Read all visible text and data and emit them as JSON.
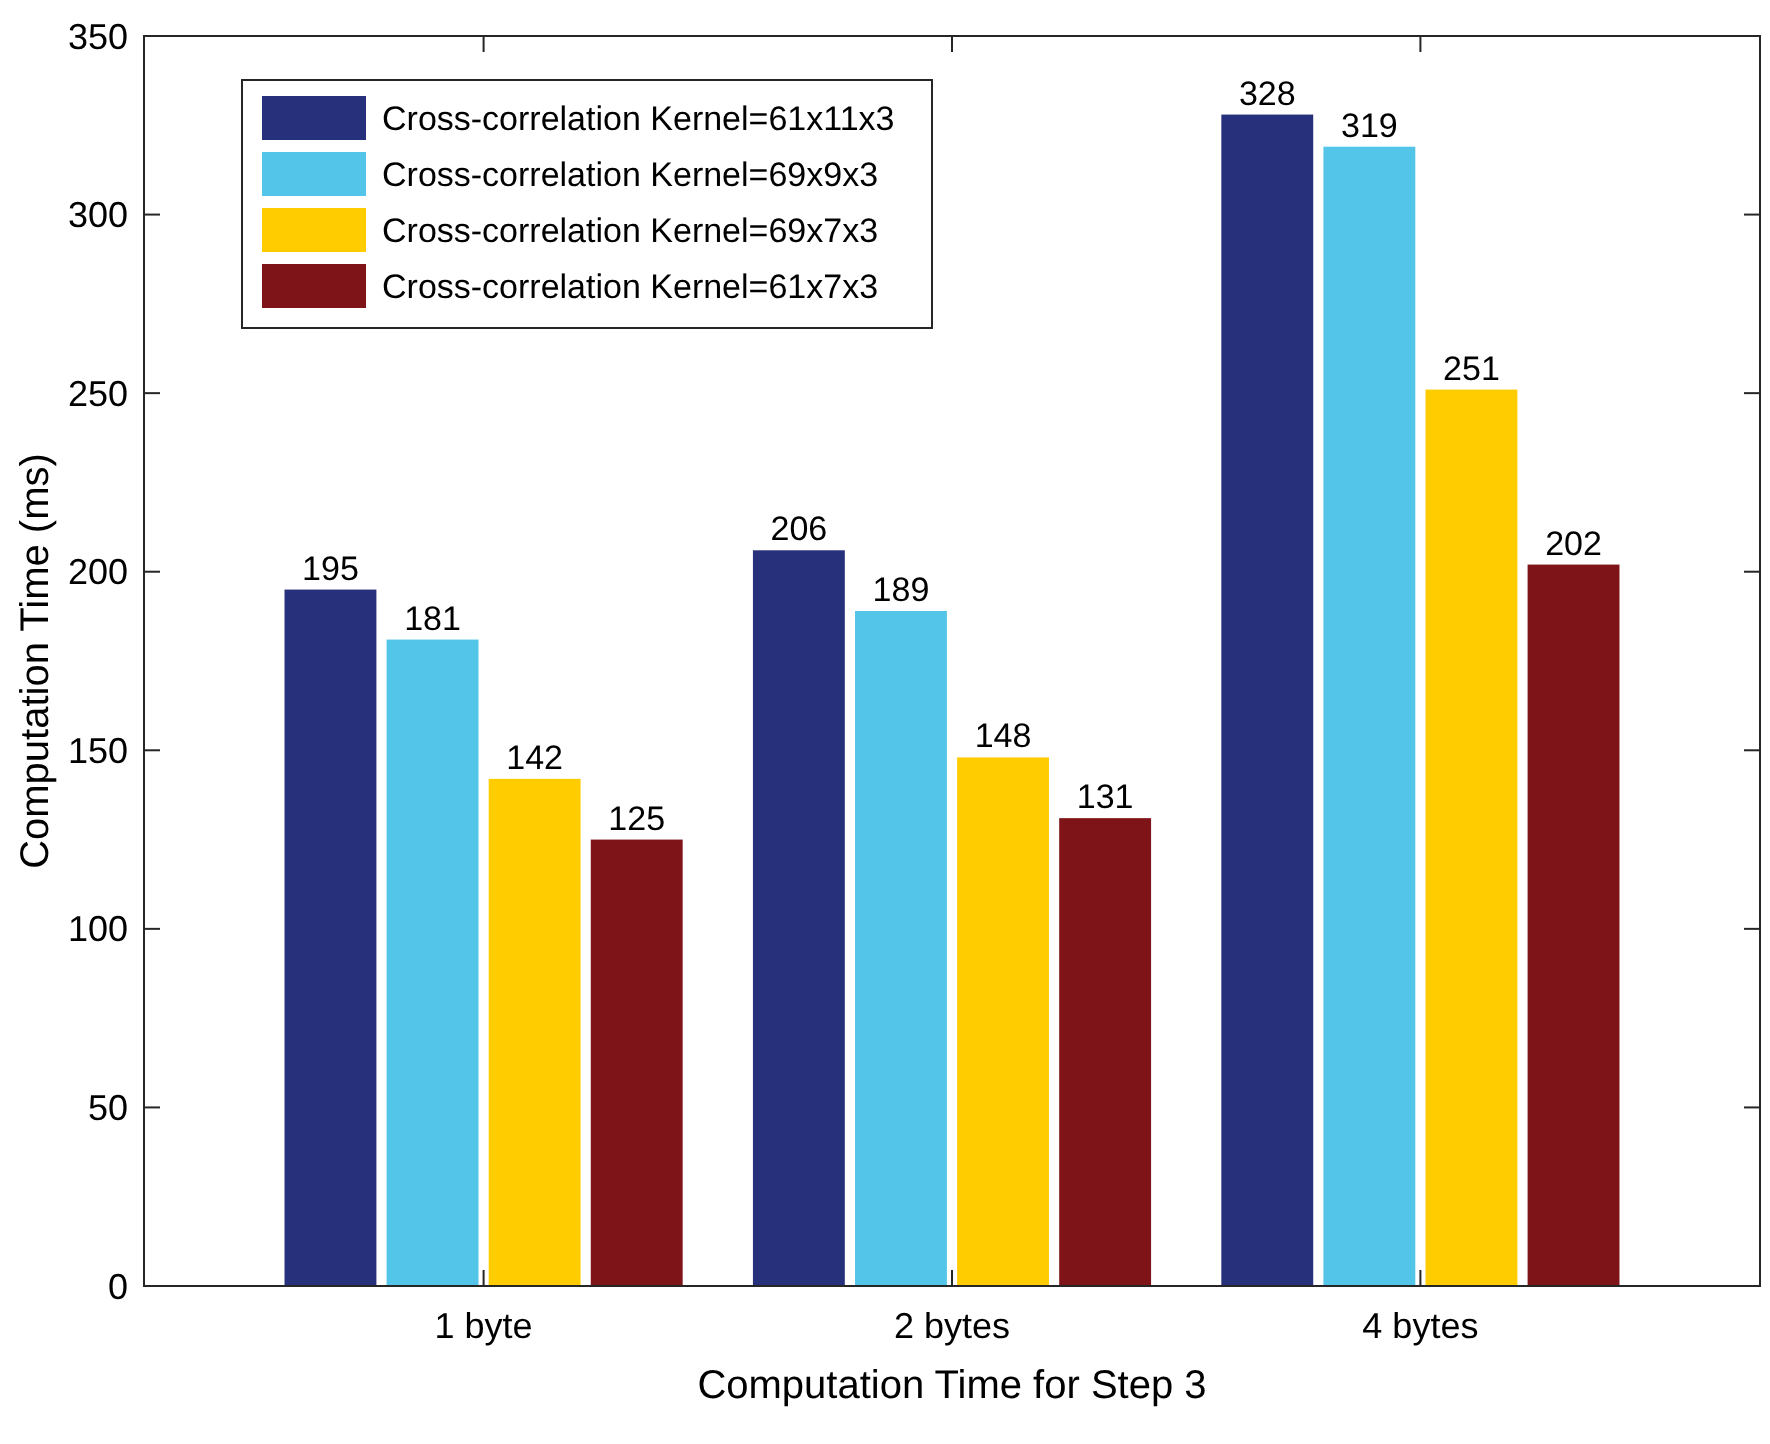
{
  "chart_data": {
    "type": "bar",
    "xlabel": "Computation Time for Step 3",
    "ylabel": "Computation Time (ms)",
    "categories": [
      "1 byte",
      "2 bytes",
      "4 bytes"
    ],
    "series": [
      {
        "name": "Cross-correlation Kernel=61x11x3",
        "color": "#27307a",
        "values": [
          195,
          206,
          328
        ]
      },
      {
        "name": "Cross-correlation Kernel=69x9x3",
        "color": "#52c5e8",
        "values": [
          181,
          189,
          319
        ]
      },
      {
        "name": "Cross-correlation Kernel=69x7x3",
        "color": "#ffcc00",
        "values": [
          142,
          148,
          251
        ]
      },
      {
        "name": "Cross-correlation Kernel=61x7x3",
        "color": "#7f1418",
        "values": [
          125,
          131,
          202
        ]
      }
    ],
    "ylim": [
      0,
      350
    ],
    "yticks": [
      0,
      50,
      100,
      150,
      200,
      250,
      300,
      350
    ],
    "data_labels": true,
    "legend": "top left",
    "grid": false
  }
}
